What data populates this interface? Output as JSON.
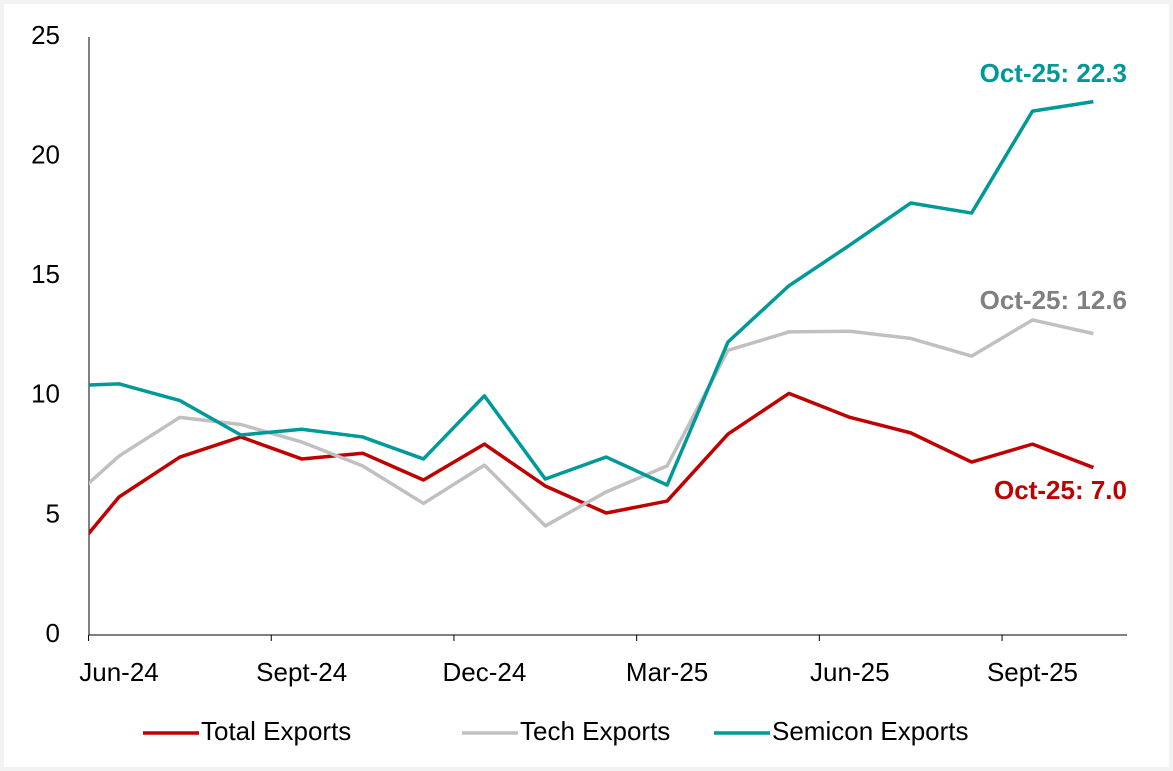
{
  "chart_data": {
    "type": "line",
    "categories": [
      null,
      "Jun-24",
      null,
      null,
      "Sept-24",
      null,
      null,
      "Dec-24",
      null,
      null,
      "Mar-25",
      null,
      null,
      "Jun-25",
      null,
      null,
      "Sept-25",
      null
    ],
    "series": [
      {
        "name": "Total Exports",
        "color": "#c00000",
        "values": [
          2.7,
          5.77,
          7.44,
          8.28,
          7.36,
          7.6,
          6.48,
          7.98,
          6.23,
          5.1,
          5.6,
          8.4,
          10.1,
          9.1,
          8.45,
          7.23,
          7.98,
          7.0
        ]
      },
      {
        "name": "Tech Exports",
        "color": "#c0c0c0",
        "values": [
          5.2,
          7.48,
          9.1,
          8.8,
          8.07,
          7.07,
          5.5,
          7.1,
          4.56,
          5.98,
          7.07,
          11.9,
          12.67,
          12.7,
          12.4,
          11.66,
          13.17,
          12.6
        ]
      },
      {
        "name": "Semicon Exports",
        "color": "#009999",
        "values": [
          10.4,
          10.5,
          9.8,
          8.36,
          8.6,
          8.28,
          7.36,
          10.0,
          6.52,
          7.44,
          6.27,
          12.25,
          14.6,
          16.3,
          18.06,
          17.64,
          21.9,
          22.3
        ]
      }
    ],
    "annotations": [
      {
        "text": "Oct-25: 22.3",
        "color": "#009999"
      },
      {
        "text": "Oct-25: 12.6",
        "color": "#808080"
      },
      {
        "text": "Oct-25: 7.0",
        "color": "#c00000"
      }
    ],
    "ylim": [
      0,
      25
    ],
    "yticks": [
      0,
      5,
      10,
      15,
      20,
      25
    ],
    "grid": false,
    "legend": "bottom"
  }
}
